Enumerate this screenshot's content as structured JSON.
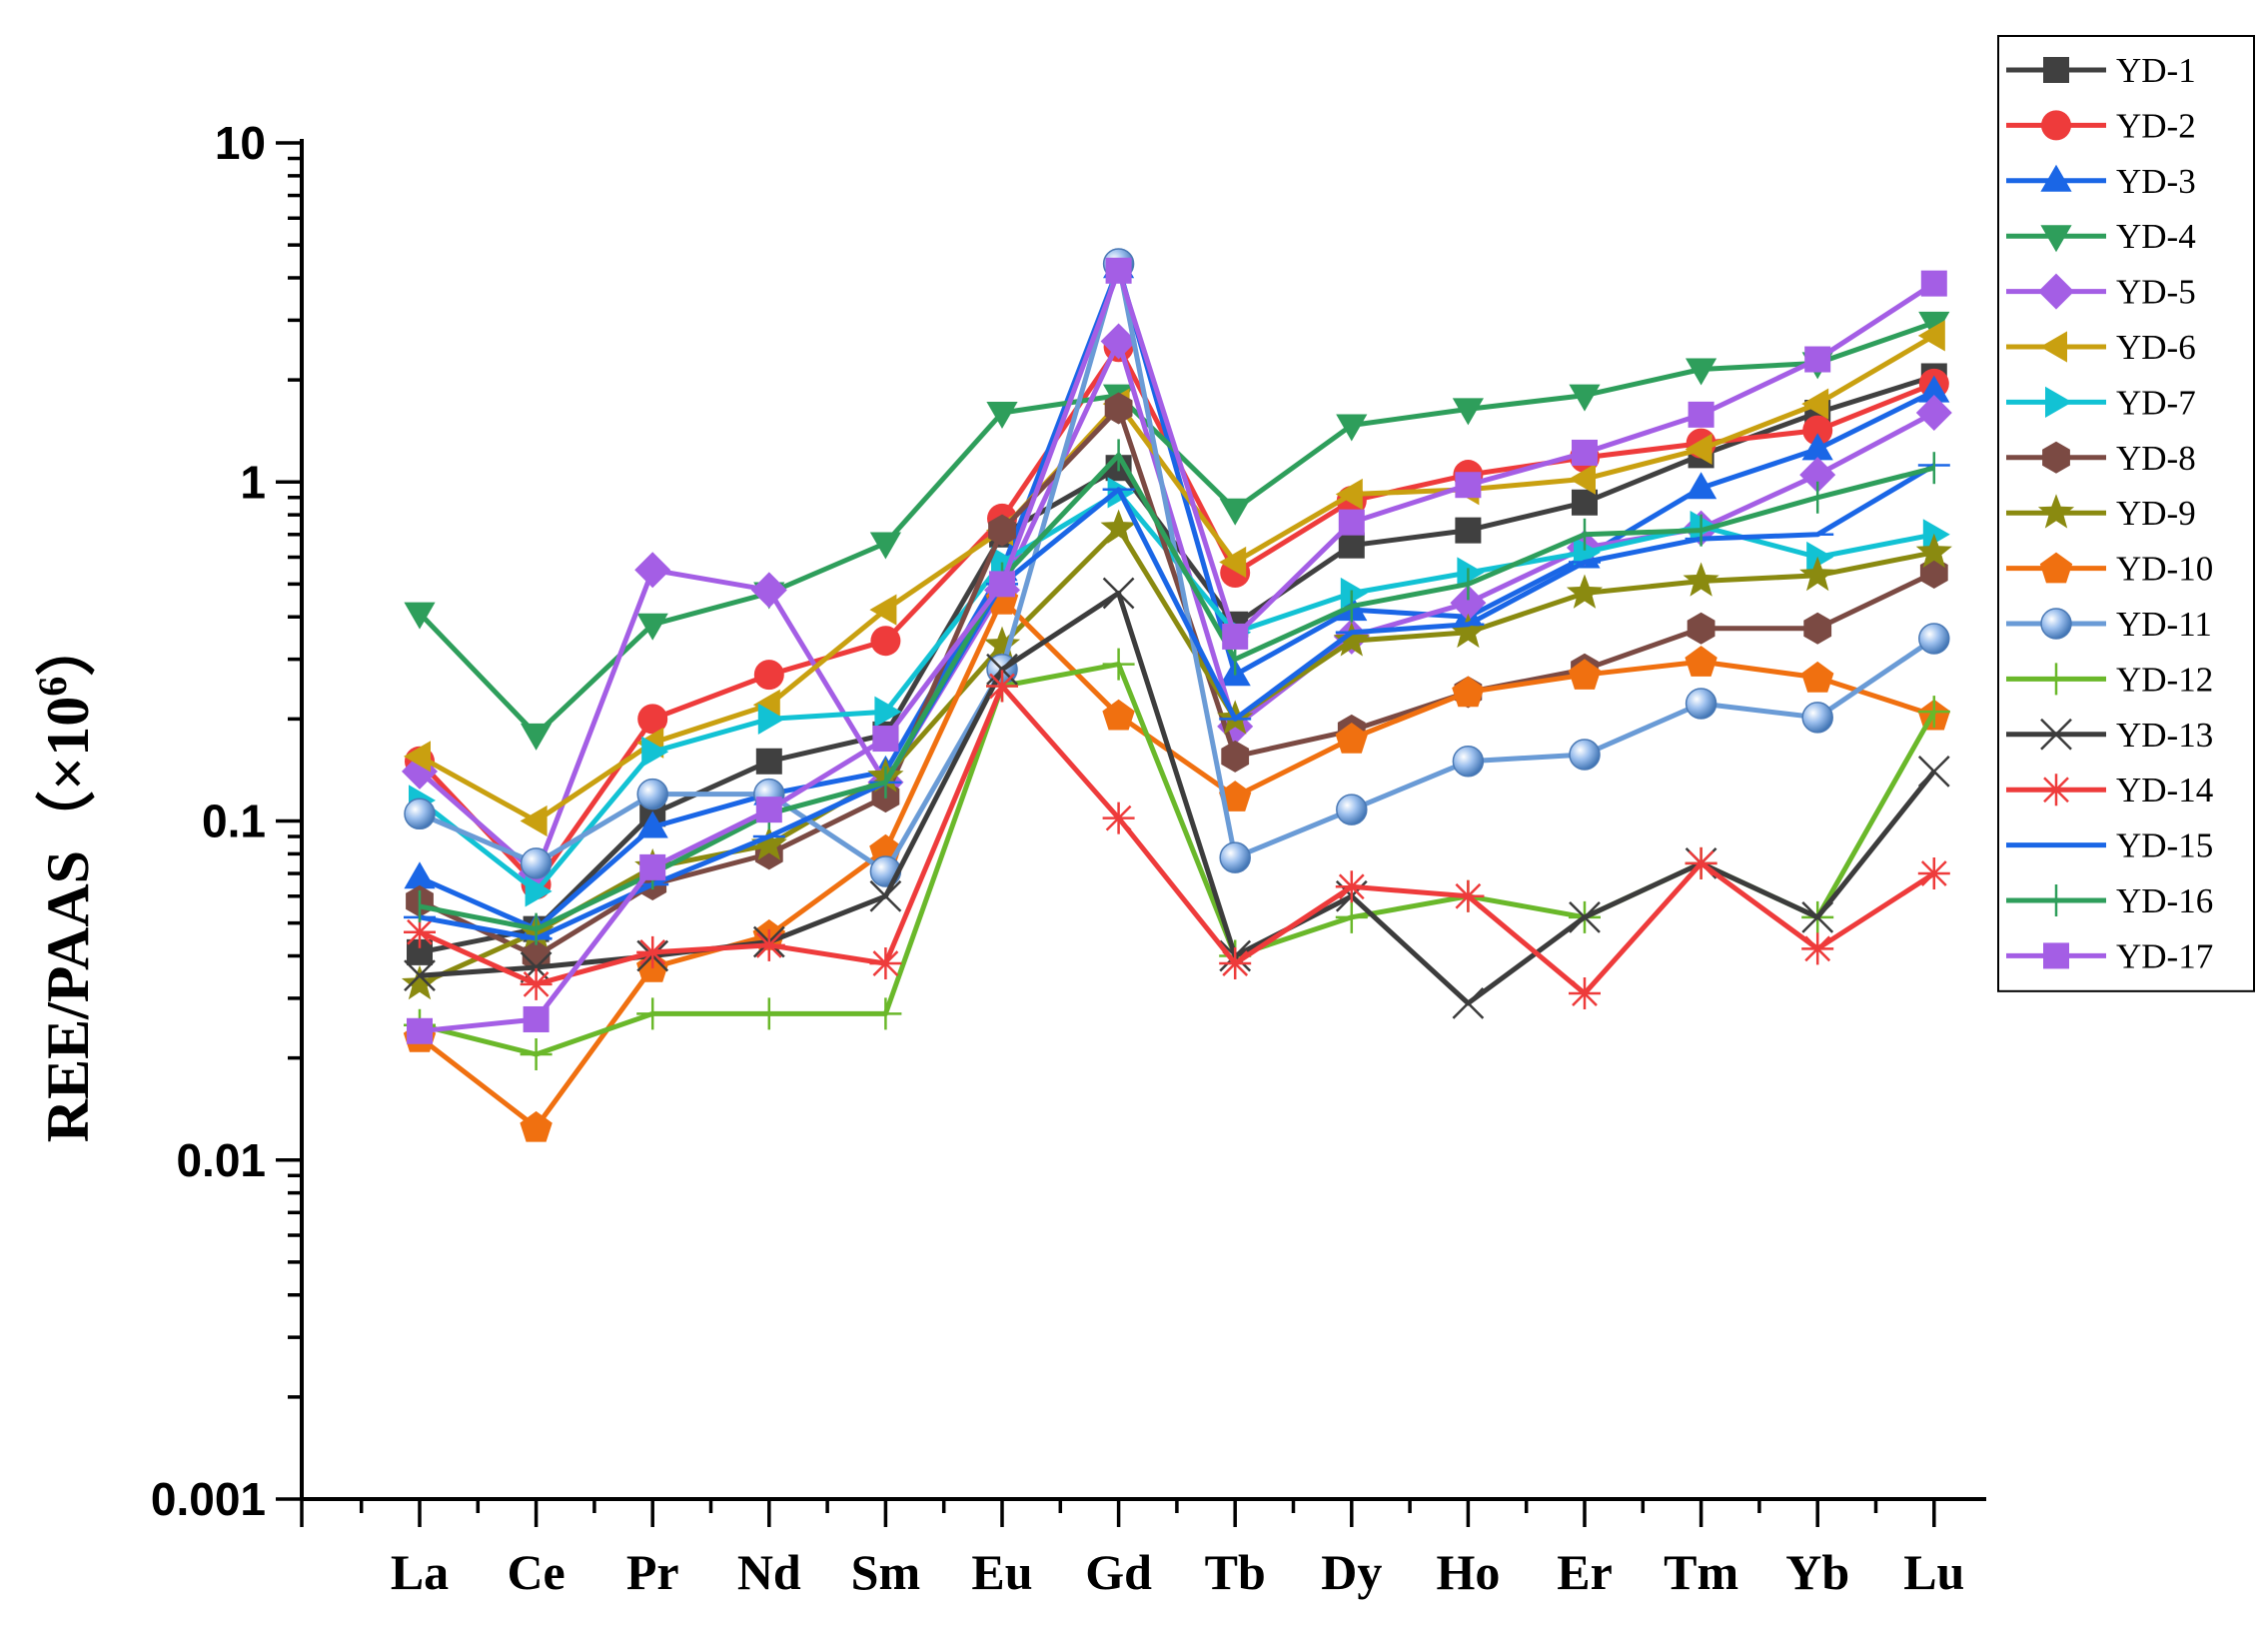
{
  "chart_data": {
    "type": "line",
    "scale": "log",
    "ylabel_main": "REE/PAAS",
    "ylabel_unit_open": "（×10",
    "ylabel_unit_sup": "6",
    "ylabel_unit_close": "）",
    "xlabel": "",
    "ylim": [
      0.001,
      10
    ],
    "yticks": [
      0.001,
      0.01,
      0.1,
      1,
      10
    ],
    "ytick_labels": [
      "0.001",
      "0.01",
      "0.1",
      "1",
      "10"
    ],
    "categories": [
      "La",
      "Ce",
      "Pr",
      "Nd",
      "Sm",
      "Eu",
      "Gd",
      "Tb",
      "Dy",
      "Ho",
      "Er",
      "Tm",
      "Yb",
      "Lu"
    ],
    "legend_position": "top-right",
    "series": [
      {
        "name": "YD-1",
        "color": "#404040",
        "marker": "square",
        "values": [
          0.041,
          0.048,
          0.105,
          0.15,
          0.18,
          0.7,
          1.1,
          0.38,
          0.65,
          0.72,
          0.87,
          1.2,
          1.6,
          2.05
        ]
      },
      {
        "name": "YD-2",
        "color": "#ee3b3b",
        "marker": "circle",
        "values": [
          0.15,
          0.065,
          0.2,
          0.27,
          0.34,
          0.78,
          2.5,
          0.54,
          0.88,
          1.05,
          1.18,
          1.3,
          1.42,
          1.95
        ]
      },
      {
        "name": "YD-3",
        "color": "#1a66e6",
        "marker": "triangle-up",
        "values": [
          0.068,
          0.048,
          0.096,
          0.12,
          0.14,
          0.55,
          4.3,
          0.27,
          0.42,
          0.4,
          0.6,
          0.96,
          1.25,
          1.85
        ]
      },
      {
        "name": "YD-4",
        "color": "#2e9e5b",
        "marker": "triangle-down",
        "values": [
          0.41,
          0.18,
          0.38,
          0.47,
          0.66,
          1.6,
          1.8,
          0.83,
          1.47,
          1.64,
          1.8,
          2.15,
          2.24,
          2.95
        ]
      },
      {
        "name": "YD-5",
        "color": "#a45ee5",
        "marker": "diamond",
        "values": [
          0.14,
          0.07,
          0.55,
          0.48,
          0.13,
          0.48,
          2.6,
          0.19,
          0.35,
          0.44,
          0.64,
          0.73,
          1.05,
          1.6
        ]
      },
      {
        "name": "YD-6",
        "color": "#c9a010",
        "marker": "triangle-left",
        "values": [
          0.155,
          0.1,
          0.17,
          0.22,
          0.42,
          0.72,
          1.7,
          0.58,
          0.92,
          0.95,
          1.02,
          1.25,
          1.7,
          2.7
        ]
      },
      {
        "name": "YD-7",
        "color": "#12c2d4",
        "marker": "triangle-right",
        "values": [
          0.115,
          0.062,
          0.16,
          0.2,
          0.21,
          0.58,
          0.93,
          0.36,
          0.47,
          0.54,
          0.62,
          0.74,
          0.6,
          0.7
        ]
      },
      {
        "name": "YD-8",
        "color": "#7b4a43",
        "marker": "hexagon",
        "values": [
          0.058,
          0.04,
          0.065,
          0.08,
          0.118,
          0.72,
          1.65,
          0.155,
          0.185,
          0.24,
          0.28,
          0.37,
          0.37,
          0.54
        ]
      },
      {
        "name": "YD-9",
        "color": "#8a8a10",
        "marker": "star",
        "values": [
          0.033,
          0.047,
          0.073,
          0.085,
          0.135,
          0.33,
          0.73,
          0.2,
          0.34,
          0.36,
          0.47,
          0.51,
          0.53,
          0.62
        ]
      },
      {
        "name": "YD-10",
        "color": "#f07010",
        "marker": "pentagon",
        "values": [
          0.023,
          0.0125,
          0.037,
          0.046,
          0.082,
          0.45,
          0.205,
          0.118,
          0.175,
          0.24,
          0.27,
          0.295,
          0.265,
          0.205
        ]
      },
      {
        "name": "YD-11",
        "color": "#6a9bd6",
        "marker": "ball",
        "values": [
          0.105,
          0.075,
          0.12,
          0.12,
          0.071,
          0.28,
          4.4,
          0.078,
          0.108,
          0.15,
          0.157,
          0.222,
          0.202,
          0.345
        ]
      },
      {
        "name": "YD-12",
        "color": "#6ab82a",
        "marker": "plus",
        "values": [
          0.025,
          0.0205,
          0.027,
          0.027,
          0.027,
          0.25,
          0.29,
          0.04,
          0.052,
          0.06,
          0.052,
          0.075,
          0.052,
          0.21
        ]
      },
      {
        "name": "YD-13",
        "color": "#3c3c3c",
        "marker": "x",
        "values": [
          0.035,
          0.037,
          0.04,
          0.044,
          0.06,
          0.28,
          0.47,
          0.04,
          0.06,
          0.029,
          0.052,
          0.075,
          0.052,
          0.14
        ]
      },
      {
        "name": "YD-14",
        "color": "#ee3b3b",
        "marker": "asterisk",
        "values": [
          0.047,
          0.033,
          0.041,
          0.043,
          0.038,
          0.25,
          0.102,
          0.038,
          0.064,
          0.06,
          0.031,
          0.075,
          0.042,
          0.07
        ]
      },
      {
        "name": "YD-15",
        "color": "#1a66e6",
        "marker": "hline",
        "values": [
          0.052,
          0.045,
          0.065,
          0.09,
          0.13,
          0.5,
          0.95,
          0.2,
          0.36,
          0.38,
          0.58,
          0.68,
          0.7,
          1.12
        ]
      },
      {
        "name": "YD-16",
        "color": "#2e9e5b",
        "marker": "vline",
        "values": [
          0.056,
          0.048,
          0.07,
          0.105,
          0.13,
          0.52,
          1.2,
          0.3,
          0.43,
          0.5,
          0.7,
          0.72,
          0.9,
          1.1
        ]
      },
      {
        "name": "YD-17",
        "color": "#a45ee5",
        "marker": "square",
        "values": [
          0.024,
          0.026,
          0.073,
          0.108,
          0.175,
          0.5,
          4.2,
          0.35,
          0.76,
          0.98,
          1.22,
          1.58,
          2.3,
          3.85
        ]
      }
    ]
  }
}
